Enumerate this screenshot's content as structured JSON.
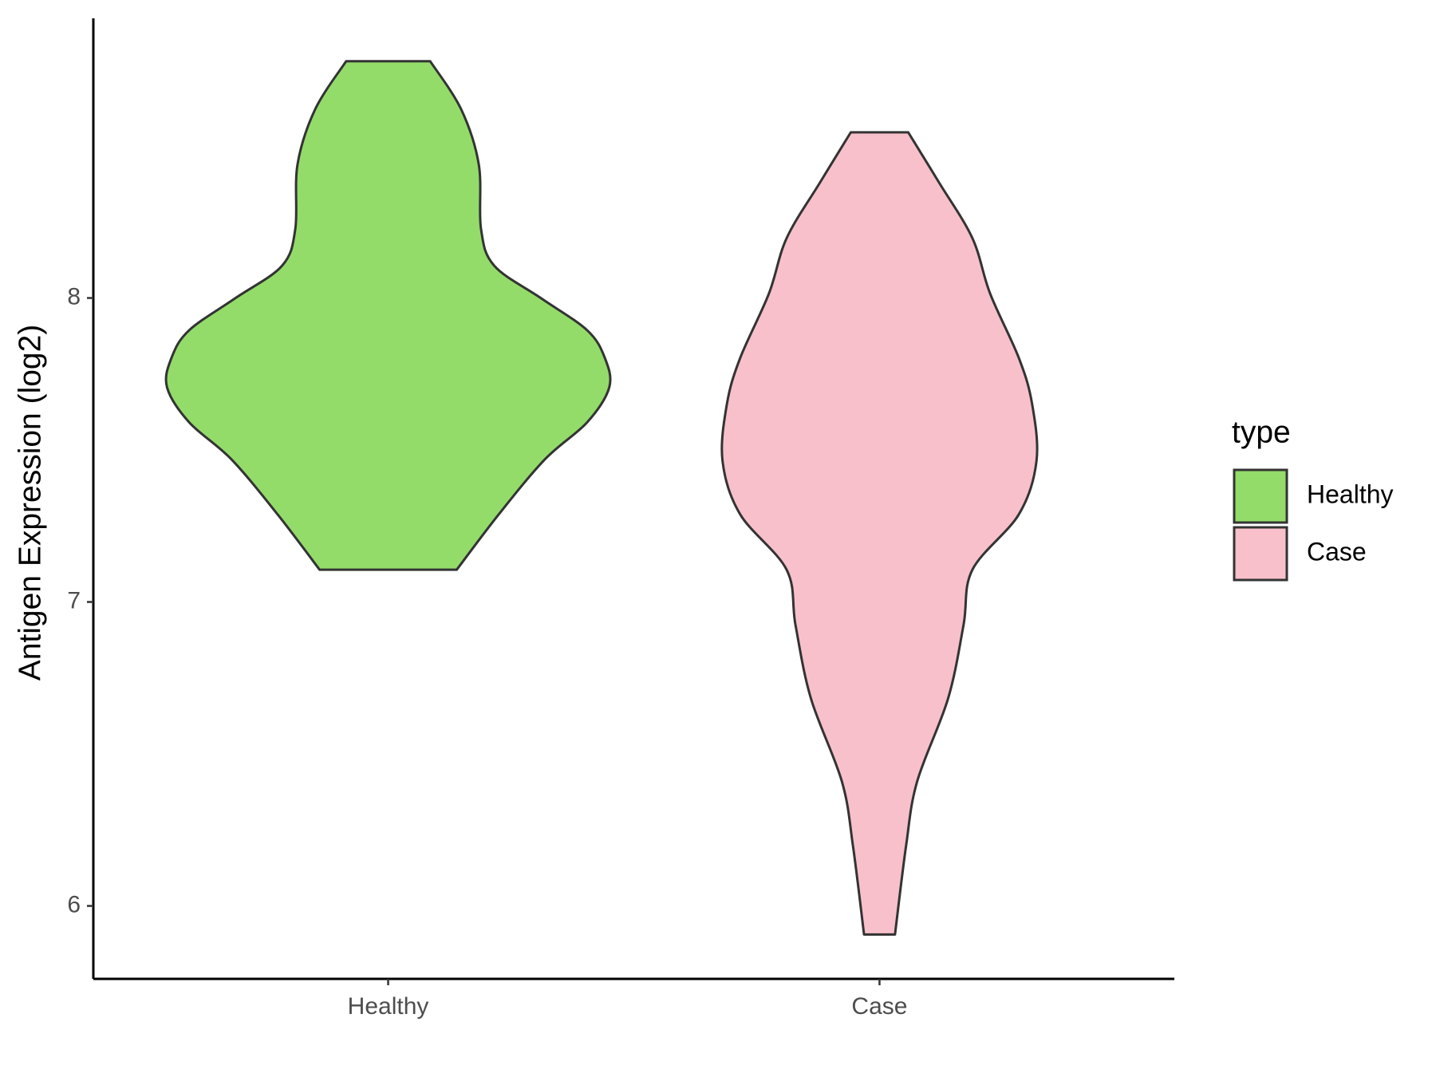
{
  "chart_data": {
    "type": "violin",
    "y_label": "Antigen Expression (log2)",
    "legend_title": "type",
    "categories": [
      "Healthy",
      "Case"
    ],
    "series": [
      {
        "name": "Healthy",
        "color": "#93dc6a",
        "y": [
          8.779,
          8.621,
          8.439,
          8.227,
          8.106,
          8.0,
          7.894,
          7.803,
          7.706,
          7.591,
          7.47,
          7.288,
          7.106
        ],
        "density": [
          0.19,
          0.33,
          0.41,
          0.42,
          0.48,
          0.69,
          0.9,
          0.98,
          1.0,
          0.9,
          0.71,
          0.5,
          0.31
        ]
      },
      {
        "name": "Case",
        "color": "#f8c0cb",
        "y": [
          8.545,
          8.379,
          8.197,
          8.015,
          7.803,
          7.652,
          7.464,
          7.288,
          7.106,
          6.924,
          6.682,
          6.409,
          6.197,
          5.906
        ],
        "density": [
          0.13,
          0.27,
          0.42,
          0.5,
          0.63,
          0.69,
          0.71,
          0.63,
          0.42,
          0.38,
          0.31,
          0.17,
          0.12,
          0.07
        ]
      }
    ],
    "ylim": [
      5.76,
      8.92
    ],
    "yticks": [
      6,
      7,
      8
    ],
    "grid": false,
    "legend": "right"
  }
}
